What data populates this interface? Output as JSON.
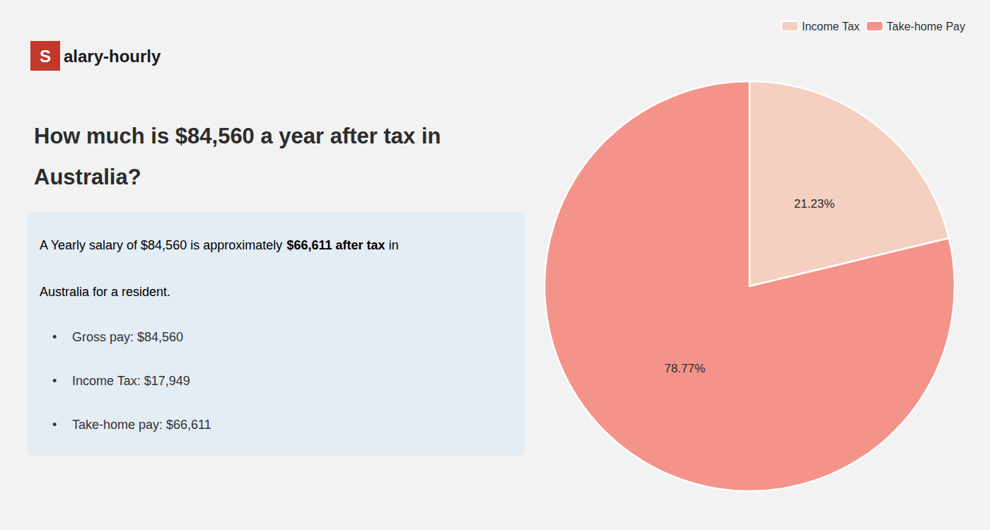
{
  "chart_data": {
    "type": "pie",
    "title": "How much is $84,560 a year after tax in\nAustralia?",
    "categories": [
      "Income Tax",
      "Take-home Pay"
    ],
    "values": [
      21.23,
      78.77
    ],
    "value_labels": [
      "21.23%",
      "78.77%"
    ],
    "colors": [
      "#f5cfc0",
      "#f4938a"
    ],
    "data_labels": true,
    "legend": "top-right",
    "annotations": {
      "logo": [
        {
          "text": "S",
          "color": "#c0392b"
        },
        {
          "text": "alary-hourly"
        }
      ],
      "summary": [
        [
          {
            "text": "A Yearly salary of $84,560 is approximately "
          },
          {
            "text": "$66,611 after tax",
            "color": "#cc0000"
          },
          {
            "text": " in"
          }
        ],
        [
          {
            "text": "Australia for a resident."
          }
        ]
      ],
      "bullets": [
        [
          {
            "text": "•"
          },
          {
            "text": "Gross pay: $84,560"
          }
        ],
        [
          {
            "text": "•"
          },
          {
            "text": "Income Tax: $17,949"
          }
        ],
        [
          {
            "text": "•"
          },
          {
            "text": "Take-home pay: $66,611"
          }
        ]
      ]
    }
  }
}
